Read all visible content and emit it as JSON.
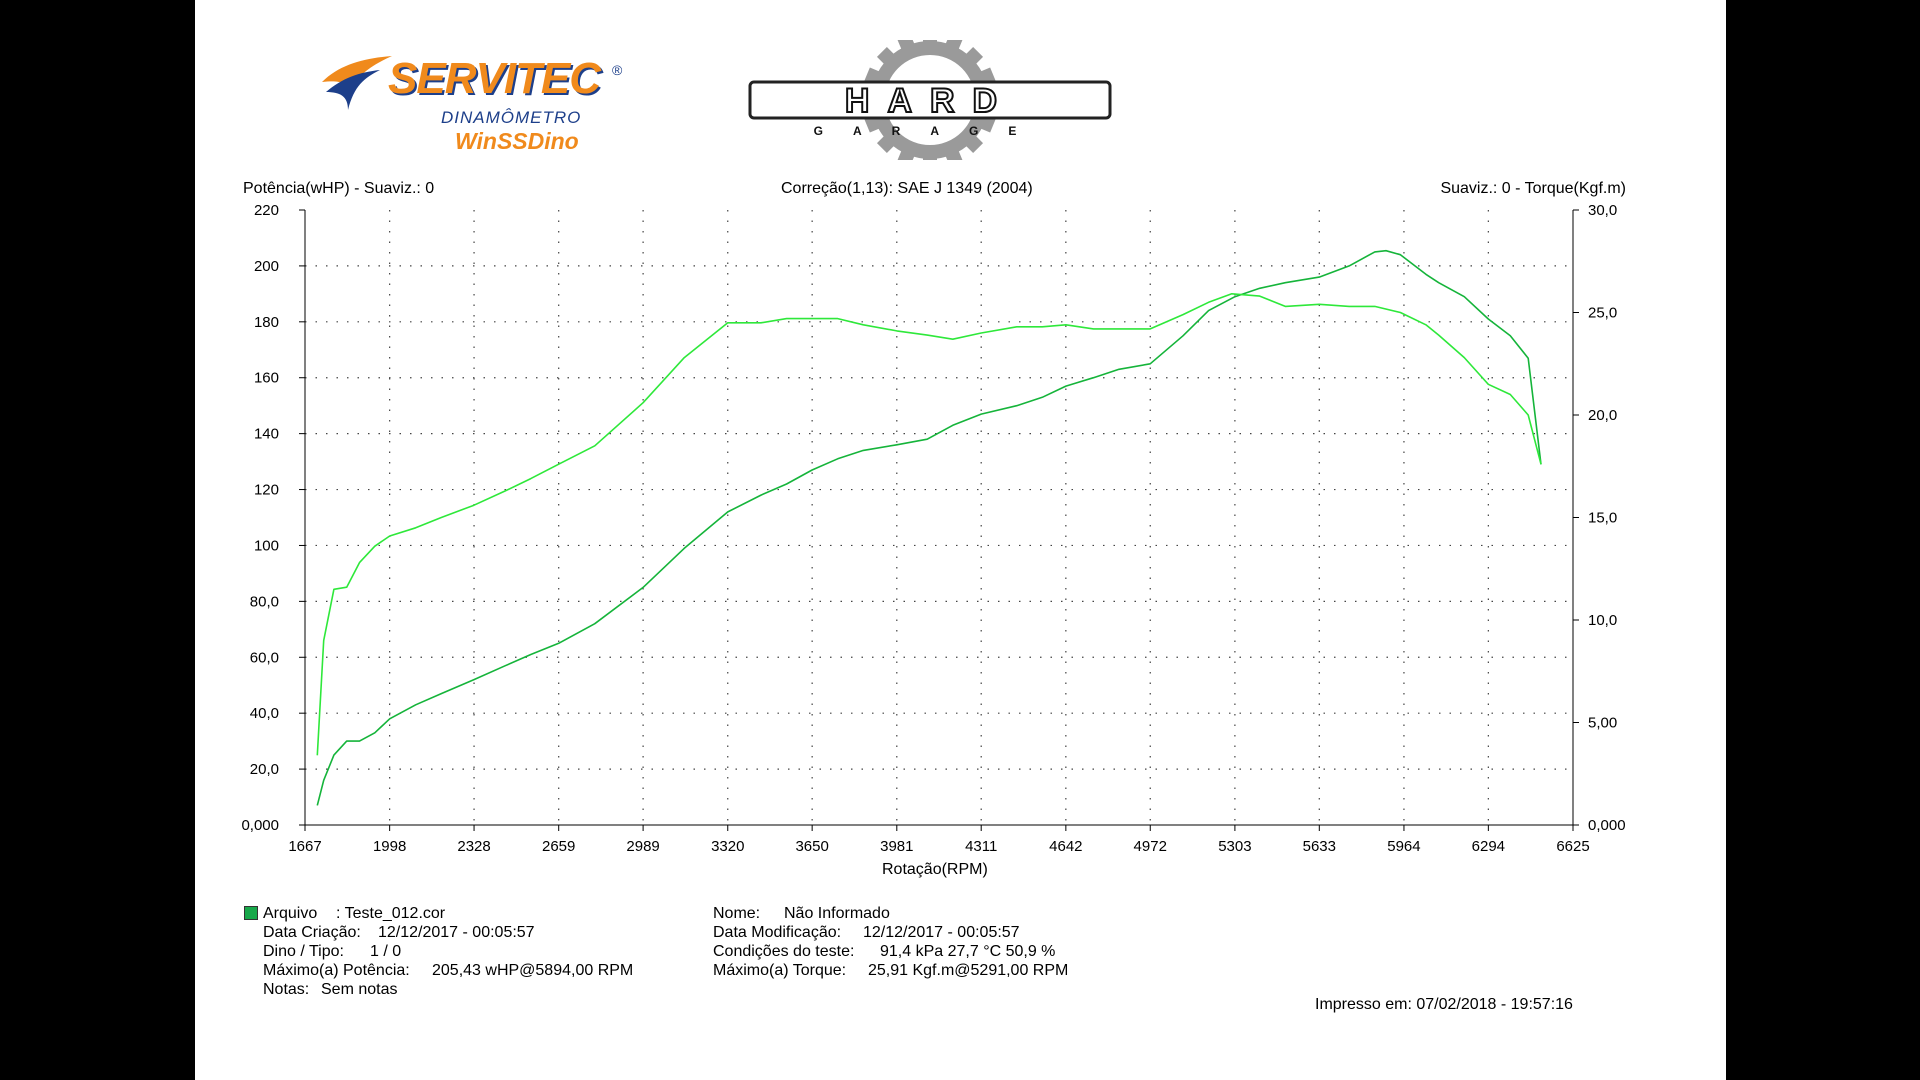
{
  "header": {
    "brand": "SERVITEC",
    "brand_mark": "®",
    "brand_sub": "DINAMÔMETRO",
    "app_name": "WinSSDino",
    "partner_logo": "HARD GARAGE"
  },
  "chart_data": {
    "type": "line",
    "left_axis_title": "Potência(wHP) - Suaviz.: 0",
    "center_title": "Correção(1,13): SAE J 1349 (2004)",
    "right_axis_title": "Suaviz.: 0 - Torque(Kgf.m)",
    "xlabel": "Rotação(RPM)",
    "xlim": [
      1667,
      6625
    ],
    "x_ticks": [
      "1667",
      "1998",
      "2328",
      "2659",
      "2989",
      "3320",
      "3650",
      "3981",
      "4311",
      "4642",
      "4972",
      "5303",
      "5633",
      "5964",
      "6294",
      "6625"
    ],
    "ylim_left": [
      0,
      220
    ],
    "y_ticks_left": [
      "0,000",
      "20,0",
      "40,0",
      "60,0",
      "80,0",
      "100",
      "120",
      "140",
      "160",
      "180",
      "200",
      "220"
    ],
    "ylim_right": [
      0,
      30
    ],
    "y_ticks_right": [
      "0,000",
      "5,00",
      "10,0",
      "15,0",
      "20,0",
      "25,0",
      "30,0"
    ],
    "grid": true,
    "series": [
      {
        "axis": "left",
        "color": "#15b43a",
        "x": [
          1715,
          1740,
          1780,
          1830,
          1880,
          1940,
          1998,
          2100,
          2200,
          2328,
          2450,
          2550,
          2659,
          2800,
          2989,
          3150,
          3320,
          3450,
          3550,
          3650,
          3750,
          3850,
          3981,
          4100,
          4200,
          4311,
          4450,
          4550,
          4642,
          4750,
          4850,
          4972,
          5100,
          5200,
          5303,
          5400,
          5500,
          5633,
          5750,
          5850,
          5894,
          5950,
          6050,
          6100,
          6200,
          6294,
          6380,
          6450,
          6500
        ],
        "values": [
          7,
          16,
          25,
          30,
          30,
          33,
          38,
          43,
          47,
          52,
          57,
          61,
          65,
          72,
          85,
          99,
          112,
          118,
          122,
          127,
          131,
          134,
          136,
          138,
          143,
          147,
          150,
          153,
          157,
          160,
          163,
          165,
          175,
          184,
          189,
          192,
          194,
          196,
          200,
          205,
          205.43,
          204,
          197,
          194,
          189,
          181,
          175,
          167,
          129
        ]
      },
      {
        "axis": "right",
        "color": "#2ee83a",
        "x": [
          1715,
          1740,
          1780,
          1830,
          1880,
          1940,
          1998,
          2100,
          2200,
          2328,
          2450,
          2550,
          2659,
          2800,
          2989,
          3150,
          3320,
          3450,
          3550,
          3650,
          3750,
          3850,
          3981,
          4100,
          4200,
          4311,
          4450,
          4550,
          4642,
          4750,
          4850,
          4972,
          5100,
          5200,
          5291,
          5400,
          5500,
          5633,
          5750,
          5850,
          5950,
          6050,
          6100,
          6200,
          6294,
          6380,
          6450,
          6500
        ],
        "values": [
          3.4,
          9,
          11.5,
          11.6,
          12.8,
          13.6,
          14.1,
          14.5,
          15.0,
          15.6,
          16.3,
          16.9,
          17.6,
          18.5,
          20.6,
          22.8,
          24.5,
          24.5,
          24.7,
          24.7,
          24.7,
          24.4,
          24.1,
          23.9,
          23.7,
          24.0,
          24.3,
          24.3,
          24.4,
          24.2,
          24.2,
          24.2,
          24.9,
          25.5,
          25.91,
          25.8,
          25.3,
          25.4,
          25.3,
          25.3,
          25.0,
          24.4,
          23.9,
          22.8,
          21.5,
          21.0,
          20.0,
          17.6
        ]
      }
    ]
  },
  "info_left": {
    "arquivo_label": "Arquivo",
    "arquivo_value": ":  Teste_012.cor",
    "criacao_label": "Data Criação:",
    "criacao_value": "12/12/2017 - 00:05:57",
    "dino_label": "Dino / Tipo:",
    "dino_value": "1  /  0",
    "maxpot_label": "Máximo(a)  Potência:",
    "maxpot_value": "205,43 wHP@5894,00 RPM",
    "notas_label": "Notas:",
    "notas_value": "Sem notas"
  },
  "info_right": {
    "nome_label": "Nome:",
    "nome_value": "Não Informado",
    "modif_label": "Data Modificação:",
    "modif_value": "12/12/2017 - 00:05:57",
    "cond_label": "Condições do teste:",
    "cond_value": "91,4  kPa  27,7  °C  50,9 %",
    "maxtor_label": "Máximo(a)  Torque:",
    "maxtor_value": "25,91 Kgf.m@5291,00 RPM"
  },
  "footer": {
    "printed": "Impresso em: 07/02/2018 - 19:57:16"
  }
}
